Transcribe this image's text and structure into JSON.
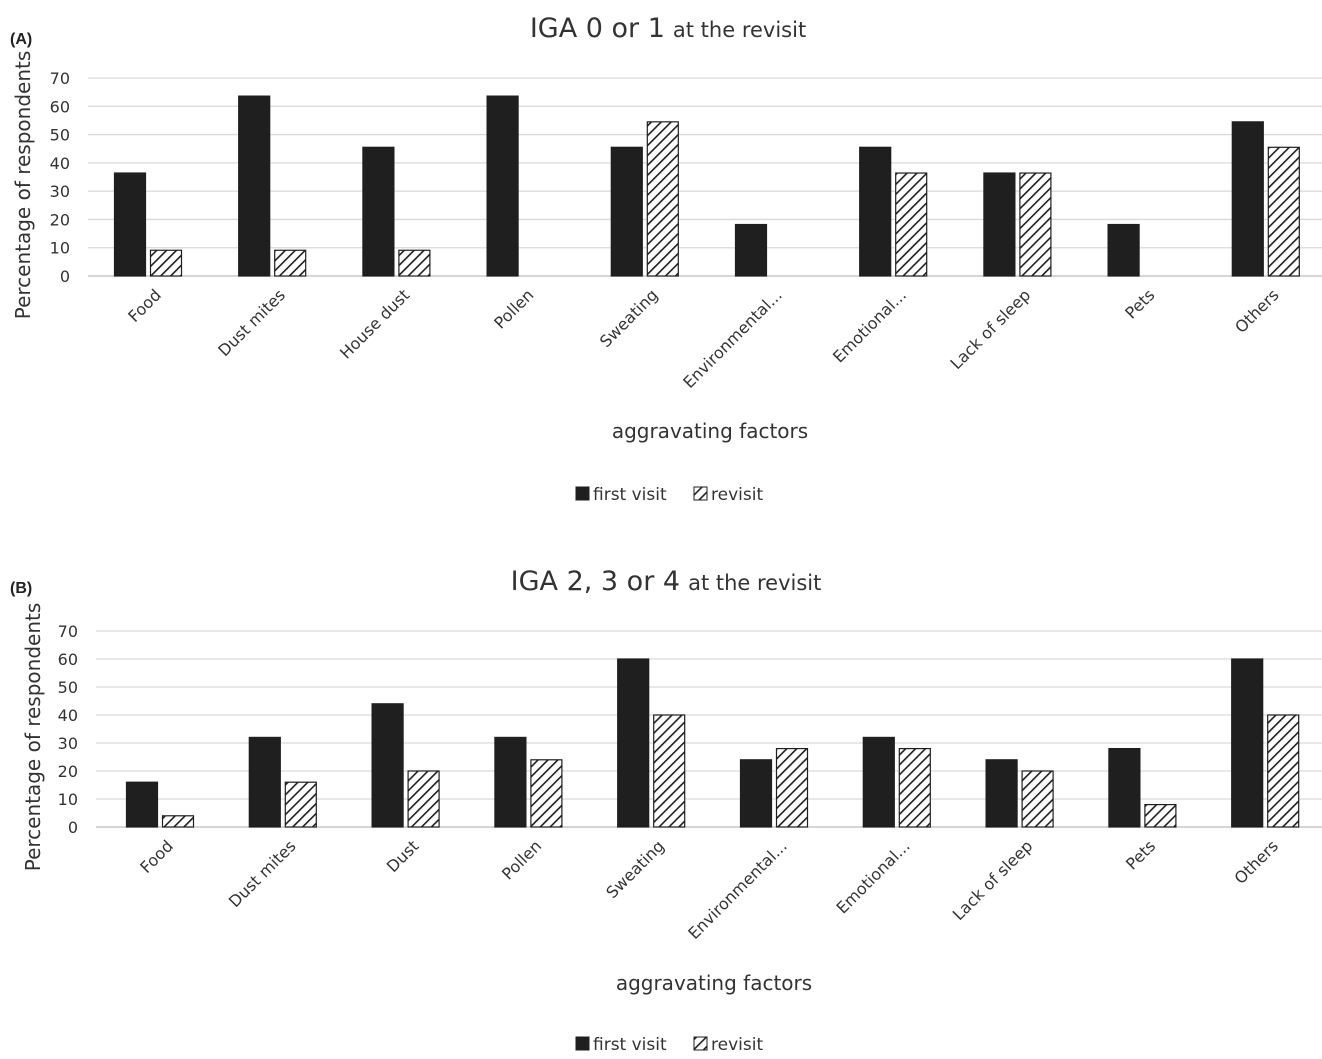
{
  "chart_data": [
    {
      "type": "bar",
      "panel_label": "(A)",
      "title_main": "IGA 0 or 1",
      "title_suffix": "at the revisit",
      "xlabel": "aggravating factors",
      "ylabel": "Percentage of respondents",
      "ylim": [
        0,
        70
      ],
      "yticks": [
        0,
        10,
        20,
        30,
        40,
        50,
        60,
        70
      ],
      "grid": true,
      "legend_position": "bottom",
      "categories": [
        "Food",
        "Dust mites",
        "House dust",
        "Pollen",
        "Sweating",
        "Environmental...",
        "Emotional...",
        "Lack of sleep",
        "Pets",
        "Others"
      ],
      "series": [
        {
          "name": "first visit",
          "pattern": "solid",
          "color": "#1f1f1f",
          "values": [
            36.4,
            63.6,
            45.5,
            63.6,
            45.5,
            18.2,
            45.5,
            36.4,
            18.2,
            54.5
          ]
        },
        {
          "name": "revisit",
          "pattern": "hatched",
          "color": "#1f1f1f",
          "values": [
            9.1,
            9.1,
            9.1,
            0,
            54.5,
            0,
            36.4,
            36.4,
            0,
            45.5
          ]
        }
      ]
    },
    {
      "type": "bar",
      "panel_label": "(B)",
      "title_main": "IGA 2, 3 or 4",
      "title_suffix": "at the revisit",
      "xlabel": "aggravating factors",
      "ylabel": "Percentage of respondents",
      "ylim": [
        0,
        70
      ],
      "yticks": [
        0,
        10,
        20,
        30,
        40,
        50,
        60,
        70
      ],
      "grid": true,
      "legend_position": "bottom",
      "categories": [
        "Food",
        "Dust mites",
        "Dust",
        "Pollen",
        "Sweating",
        "Environmental...",
        "Emotional...",
        "Lack of sleep",
        "Pets",
        "Others"
      ],
      "series": [
        {
          "name": "first visit",
          "pattern": "solid",
          "color": "#1f1f1f",
          "values": [
            16,
            32,
            44,
            32,
            60,
            24,
            32,
            24,
            28,
            60
          ]
        },
        {
          "name": "revisit",
          "pattern": "hatched",
          "color": "#1f1f1f",
          "values": [
            4,
            16,
            20,
            24,
            40,
            28,
            28,
            20,
            8,
            40
          ]
        }
      ]
    }
  ]
}
